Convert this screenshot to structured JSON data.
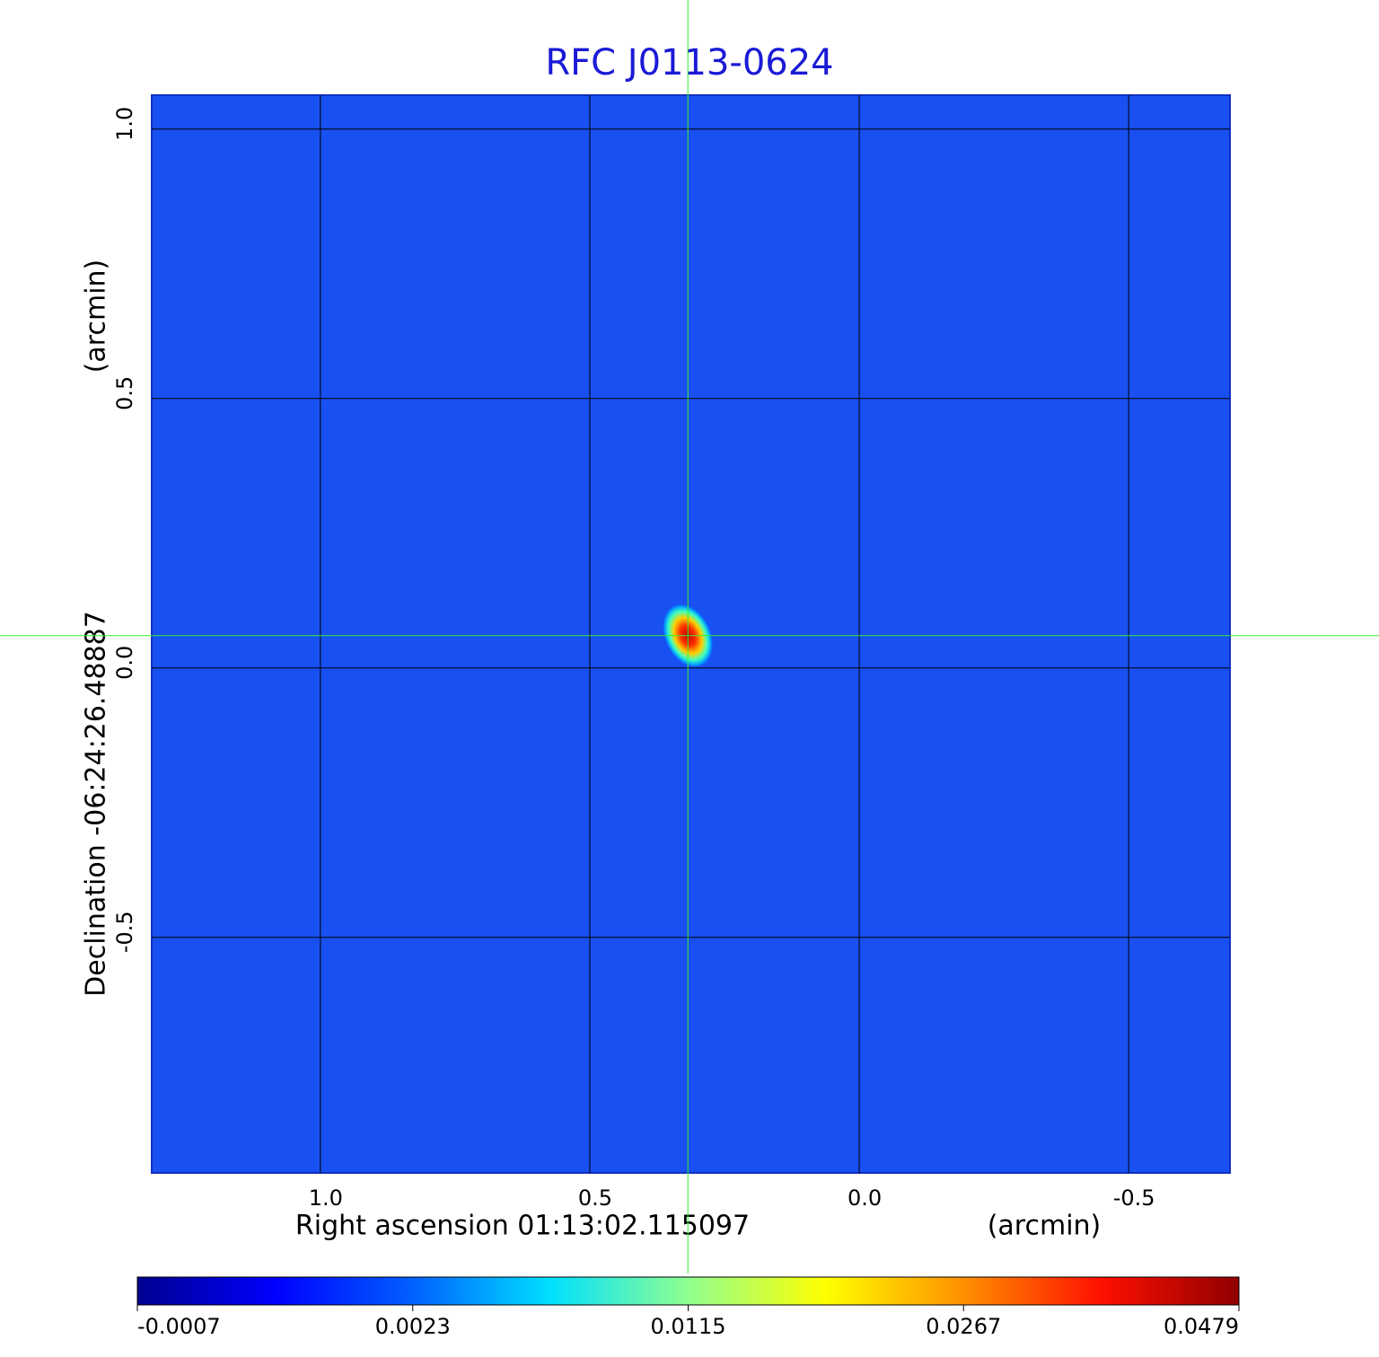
{
  "chart_data": {
    "type": "image",
    "title": "RFC J0113-0624",
    "xlabel": "Right ascension  01:13:02.115097",
    "xunit": "(arcmin)",
    "ylabel": "Declination  -06:24:26.48887",
    "yunit": "(arcmin)",
    "xlim": [
      1.313,
      -0.688
    ],
    "ylim": [
      -0.937,
      1.063
    ],
    "xticks": [
      {
        "value": 1,
        "label": "1.0"
      },
      0.5,
      {
        "value": 0,
        "label": "0.0"
      },
      -0.5
    ],
    "yticks": [
      {
        "value": 1,
        "label": "1.0"
      },
      0.5,
      {
        "value": 0,
        "label": "0.0"
      },
      -0.5
    ],
    "grid": true,
    "background_color": "#1850f2",
    "source": {
      "x": 0.318,
      "y": 0.06
    },
    "crosshair": {
      "x": 0.318,
      "y": 0.06,
      "color": "#33ee33"
    },
    "colorbar": {
      "colormap": "jet",
      "ticks": [
        -0.0007,
        0.0023,
        0.0115,
        0.0267,
        0.0479
      ]
    }
  }
}
